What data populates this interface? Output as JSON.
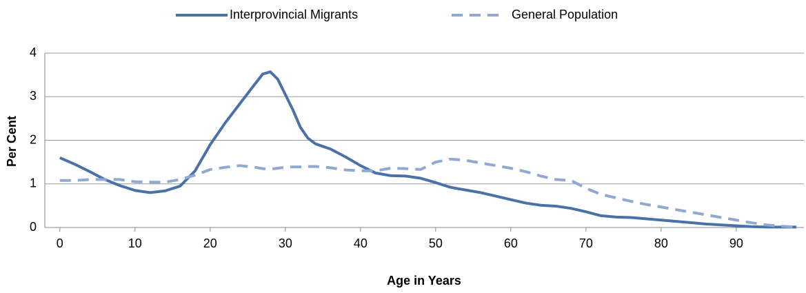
{
  "chart_data": {
    "type": "line",
    "x_label": "Age in Years",
    "y_label": "Per Cent",
    "x": [
      0,
      2,
      4,
      6,
      8,
      10,
      12,
      14,
      16,
      18,
      20,
      22,
      24,
      26,
      27,
      28,
      29,
      30,
      31,
      32,
      33,
      34,
      36,
      38,
      40,
      42,
      44,
      46,
      48,
      50,
      52,
      54,
      56,
      58,
      60,
      62,
      64,
      66,
      68,
      70,
      72,
      74,
      76,
      78,
      80,
      82,
      84,
      86,
      88,
      90,
      92,
      94,
      96,
      98
    ],
    "series": [
      {
        "name": "Interprovincial Migrants",
        "color": "#4a72a8",
        "dash": false,
        "values": [
          1.6,
          1.45,
          1.28,
          1.1,
          0.96,
          0.85,
          0.8,
          0.84,
          0.95,
          1.3,
          1.9,
          2.4,
          2.85,
          3.3,
          3.52,
          3.57,
          3.4,
          3.05,
          2.7,
          2.3,
          2.05,
          1.92,
          1.8,
          1.62,
          1.42,
          1.25,
          1.19,
          1.18,
          1.13,
          1.03,
          0.92,
          0.86,
          0.8,
          0.72,
          0.64,
          0.56,
          0.51,
          0.49,
          0.44,
          0.36,
          0.27,
          0.24,
          0.23,
          0.2,
          0.17,
          0.14,
          0.11,
          0.08,
          0.06,
          0.04,
          0.02,
          0.01,
          0.01,
          0.01
        ]
      },
      {
        "name": "General Population",
        "color": "#8fa9d0",
        "dash": true,
        "values": [
          1.08,
          1.08,
          1.1,
          1.1,
          1.1,
          1.05,
          1.04,
          1.04,
          1.1,
          1.2,
          1.33,
          1.38,
          1.42,
          1.38,
          1.35,
          1.34,
          1.36,
          1.38,
          1.39,
          1.39,
          1.4,
          1.4,
          1.37,
          1.32,
          1.3,
          1.3,
          1.36,
          1.35,
          1.33,
          1.5,
          1.57,
          1.54,
          1.48,
          1.42,
          1.36,
          1.28,
          1.18,
          1.1,
          1.08,
          0.9,
          0.76,
          0.68,
          0.6,
          0.53,
          0.47,
          0.41,
          0.35,
          0.29,
          0.23,
          0.17,
          0.11,
          0.06,
          0.03,
          0.01
        ]
      }
    ],
    "xlim": [
      -2,
      99
    ],
    "xticks": [
      0,
      10,
      20,
      30,
      40,
      50,
      60,
      70,
      80,
      90
    ],
    "ylim": [
      0,
      4
    ],
    "yticks": [
      0,
      1,
      2,
      3,
      4
    ],
    "grid": true,
    "legend": "top"
  }
}
